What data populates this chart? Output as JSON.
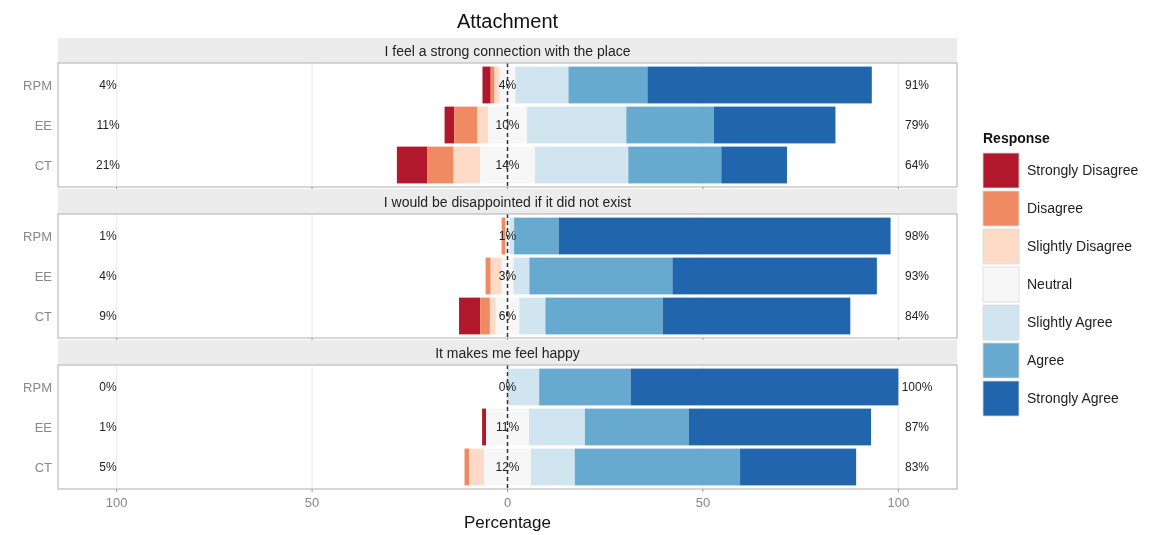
{
  "chart_data": [
    {
      "type": "bar",
      "orientation": "horizontal",
      "title": "Attachment",
      "subtitle": "I feel a strong connection with the place",
      "categories": [
        "RPM",
        "EE",
        "CT"
      ],
      "xlim": [
        -115,
        115
      ],
      "xticks": [
        {
          "value": -100,
          "label": null
        },
        {
          "value": -50,
          "label": null
        },
        {
          "value": 0,
          "label": null
        },
        {
          "value": 50,
          "label": null
        },
        {
          "value": 100,
          "label": null
        }
      ],
      "grid": "x",
      "tick_labels": "y",
      "legend": "right",
      "legend_title": "Response",
      "ref_lines": [
        {
          "axis": "x",
          "value": 0,
          "line_style": "dashed",
          "color": "#333333"
        }
      ],
      "series": [
        {
          "name": "Strongly Disagree",
          "color": "#b2182b",
          "base": [
            -6.4,
            -16.1,
            -28.3
          ],
          "values": [
            2.1,
            2.5,
            7.8
          ]
        },
        {
          "name": "Disagree",
          "color": "#ef8a62",
          "base": [
            -4.3,
            -13.6,
            -20.5
          ],
          "values": [
            1.0,
            5.8,
            6.7
          ]
        },
        {
          "name": "Slightly Disagree",
          "color": "#fddbc7",
          "base": [
            -3.3,
            -7.8,
            -13.8
          ],
          "values": [
            1.3,
            2.8,
            6.8
          ]
        },
        {
          "name": "Neutral",
          "color": "#f7f7f7",
          "base": [
            -2,
            -5,
            -7
          ],
          "values": [
            4,
            10,
            14
          ]
        },
        {
          "name": "Slightly Agree",
          "color": "#d1e5f0",
          "base": [
            2,
            5,
            7
          ],
          "values": [
            13.6,
            25.4,
            23.9
          ]
        },
        {
          "name": "Agree",
          "color": "#67a9cf",
          "base": [
            15.6,
            30.4,
            30.9
          ],
          "values": [
            20.2,
            22.4,
            23.8
          ]
        },
        {
          "name": "Strongly Agree",
          "color": "#2166ac",
          "base": [
            35.8,
            52.8,
            54.7
          ],
          "values": [
            57.4,
            31.1,
            16.8
          ]
        }
      ],
      "annotations": [
        "4%",
        "11%",
        "21%",
        "4%",
        "10%",
        "14%",
        "91%",
        "79%",
        "64%"
      ]
    },
    {
      "type": "bar",
      "orientation": "horizontal",
      "subtitle": "I would be disappointed if it did not exist",
      "categories": [
        "RPM",
        "EE",
        "CT"
      ],
      "xlim": [
        -115,
        115
      ],
      "xticks": [
        {
          "value": -100,
          "label": null
        },
        {
          "value": -50,
          "label": null
        },
        {
          "value": 0,
          "label": null
        },
        {
          "value": 50,
          "label": null
        },
        {
          "value": 100,
          "label": null
        }
      ],
      "grid": "x",
      "tick_labels": "y",
      "ref_lines": [
        {
          "axis": "x",
          "value": 0,
          "line_style": "dashed",
          "color": "#333333"
        }
      ],
      "series": [
        {
          "color": "#b2182b",
          "base": [
            null,
            null,
            -12.4
          ],
          "values": [
            null,
            null,
            5.4
          ]
        },
        {
          "color": "#ef8a62",
          "base": [
            -1.5,
            -5.6,
            -7.0
          ],
          "values": [
            1.0,
            1.3,
            2.5
          ]
        },
        {
          "color": "#fddbc7",
          "base": [
            null,
            -4.3,
            -4.5
          ],
          "values": [
            null,
            2.8,
            1.5
          ]
        },
        {
          "color": "#f7f7f7",
          "base": [
            -0.5,
            -1.5,
            -3
          ],
          "values": [
            1,
            3,
            6
          ]
        },
        {
          "color": "#d1e5f0",
          "base": [
            0.5,
            1.5,
            3
          ],
          "values": [
            1.2,
            4.1,
            6.7
          ]
        },
        {
          "color": "#67a9cf",
          "base": [
            1.7,
            5.6,
            9.7
          ],
          "values": [
            11.4,
            36.6,
            30
          ]
        },
        {
          "color": "#2166ac",
          "base": [
            13.1,
            42.2,
            39.7
          ],
          "values": [
            84.9,
            52.3,
            48
          ]
        }
      ],
      "annotations": [
        "1%",
        "4%",
        "9%",
        "1%",
        "3%",
        "6%",
        "98%",
        "93%",
        "84%"
      ]
    },
    {
      "type": "bar",
      "orientation": "horizontal",
      "subtitle": "It makes me feel happy",
      "xlabel": "Percentage",
      "categories": [
        "RPM",
        "EE",
        "CT"
      ],
      "xlim": [
        -115,
        115
      ],
      "xticks": [
        {
          "value": -100,
          "label": "100"
        },
        {
          "value": -50,
          "label": "50"
        },
        0,
        50,
        100
      ],
      "grid": "x",
      "ref_lines": [
        {
          "axis": "x",
          "value": 0,
          "line_style": "dashed",
          "color": "#333333"
        }
      ],
      "series": [
        {
          "color": "#b2182b",
          "base": [
            null,
            -6.5,
            null
          ],
          "values": [
            null,
            1,
            null
          ]
        },
        {
          "color": "#ef8a62",
          "base": [
            null,
            null,
            -11
          ],
          "values": [
            null,
            null,
            1.2
          ]
        },
        {
          "color": "#fddbc7",
          "base": [
            null,
            null,
            -9.8
          ],
          "values": [
            null,
            null,
            3.8
          ]
        },
        {
          "color": "#f7f7f7",
          "base": [
            null,
            -5.5,
            -6
          ],
          "values": [
            null,
            11,
            12
          ]
        },
        {
          "color": "#d1e5f0",
          "base": [
            0,
            5.5,
            6
          ],
          "values": [
            8.1,
            14.3,
            11.2
          ]
        },
        {
          "color": "#67a9cf",
          "base": [
            8.1,
            19.8,
            17.2
          ],
          "values": [
            23.4,
            26.6,
            42.3
          ]
        },
        {
          "color": "#2166ac",
          "base": [
            31.5,
            46.4,
            59.5
          ],
          "values": [
            68.5,
            46.6,
            29.7
          ]
        }
      ],
      "annotations": [
        "0%",
        "1%",
        "5%",
        "0%",
        "11%",
        "12%",
        "100%",
        "87%",
        "83%"
      ]
    }
  ]
}
